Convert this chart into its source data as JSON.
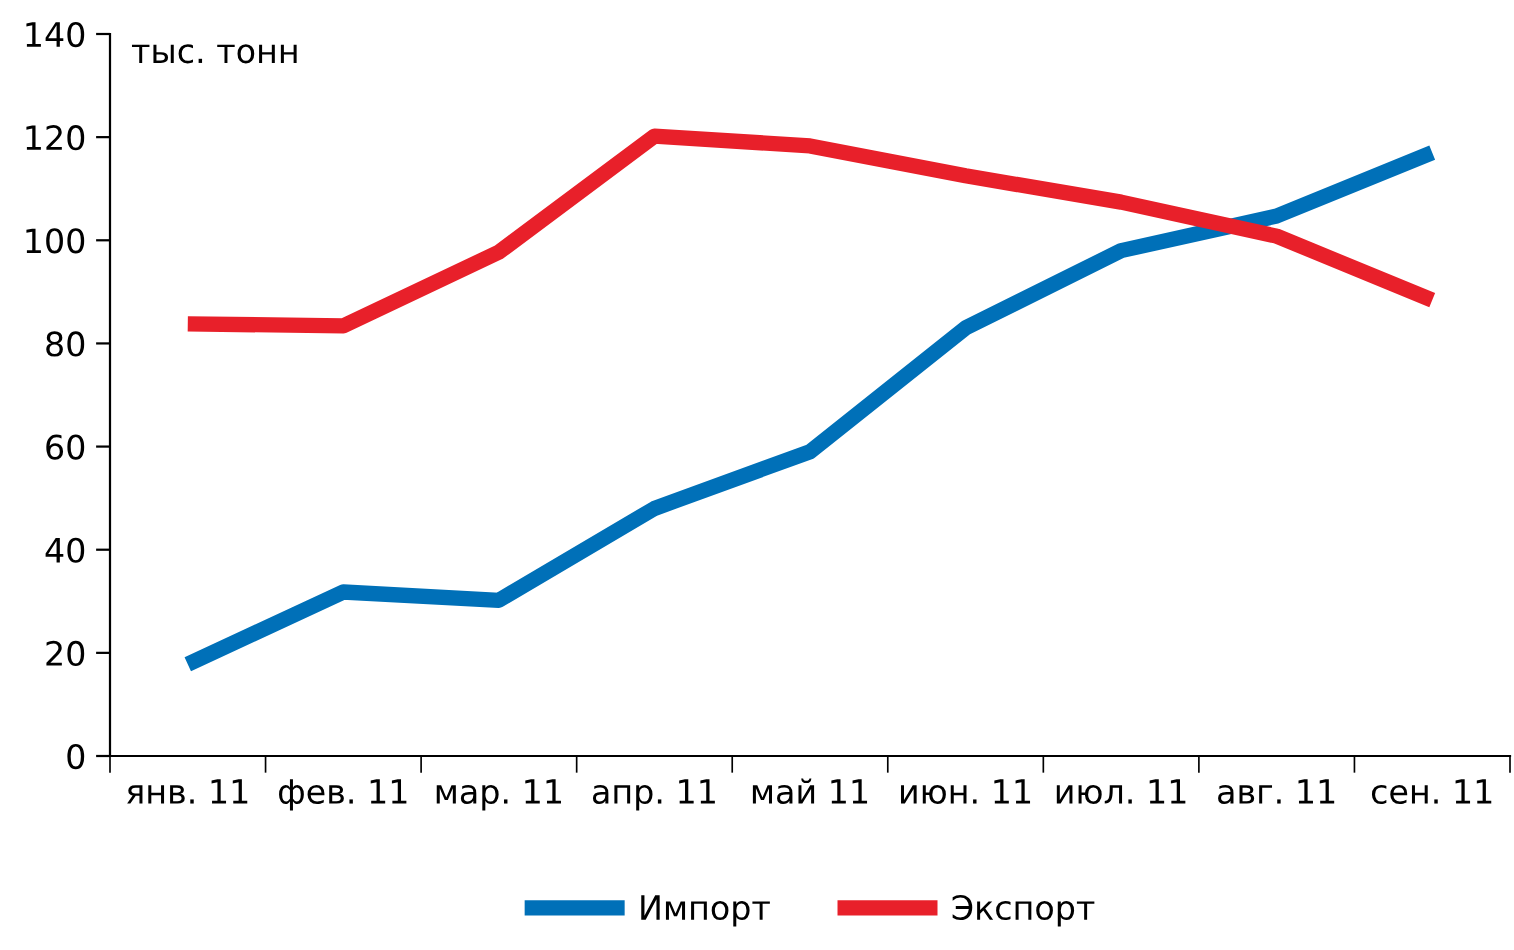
{
  "chart_data": {
    "type": "line",
    "ylabel": "тыс. тонн",
    "categories": [
      "янв. 11",
      "фев. 11",
      "мар. 11",
      "апр. 11",
      "май 11",
      "июн. 11",
      "июл. 11",
      "авг. 11",
      "сен. 11"
    ],
    "series": [
      {
        "name": "Импорт",
        "color": "#0070b8",
        "values": [
          17.8,
          31.8,
          30.2,
          48,
          59,
          83,
          98,
          104.7,
          117
        ]
      },
      {
        "name": "Экспорт",
        "color": "#e8202a",
        "values": [
          83.8,
          83.4,
          97.7,
          120.2,
          118.3,
          112.5,
          107.4,
          100.8,
          88.4
        ]
      }
    ],
    "ylim": [
      0,
      140
    ],
    "yticks": [
      0,
      20,
      40,
      60,
      80,
      100,
      120,
      140
    ],
    "grid": false,
    "legend": "bottom",
    "marker": "none",
    "line_style": "solid"
  }
}
